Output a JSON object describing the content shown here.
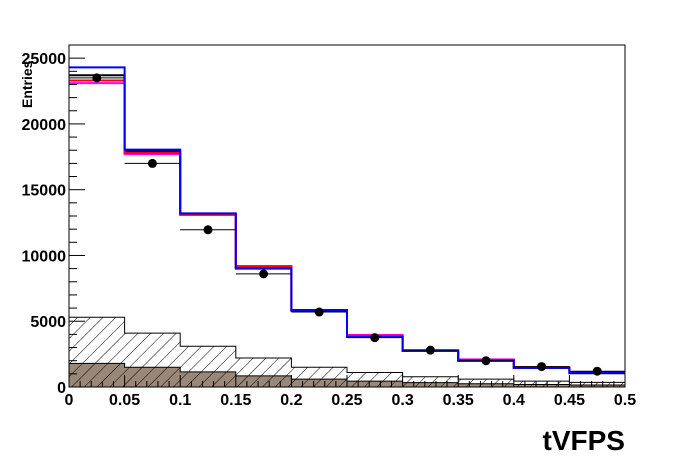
{
  "chart_data": {
    "type": "histogram",
    "xlabel": "tVFPS",
    "ylabel": "Entries",
    "xlim": [
      0,
      0.5
    ],
    "ylim": [
      0,
      26000
    ],
    "grid": false,
    "x_ticks": [
      "0",
      "0.05",
      "0.1",
      "0.15",
      "0.2",
      "0.25",
      "0.3",
      "0.35",
      "0.4",
      "0.45",
      "0.5"
    ],
    "y_ticks": [
      "0",
      "5000",
      "10000",
      "15000",
      "20000",
      "25000"
    ],
    "bin_edges": [
      0,
      0.05,
      0.1,
      0.15,
      0.2,
      0.25,
      0.3,
      0.35,
      0.4,
      0.45,
      0.5
    ],
    "series": [
      {
        "style": "filled-taupe",
        "color": "#998877",
        "values": [
          1800,
          1500,
          1150,
          850,
          600,
          450,
          330,
          250,
          190,
          150
        ]
      },
      {
        "style": "hatched",
        "color": "#000000",
        "values": [
          5300,
          4100,
          3100,
          2200,
          1500,
          1100,
          780,
          600,
          450,
          350
        ]
      },
      {
        "style": "line",
        "color": "#000000",
        "values": [
          23700,
          17900,
          13100,
          9050,
          5800,
          3850,
          2750,
          2000,
          1450,
          1050
        ]
      },
      {
        "style": "line",
        "color": "#ff00ff",
        "values": [
          23100,
          17700,
          13150,
          9200,
          5850,
          3950,
          2800,
          2100,
          1500,
          1100
        ]
      },
      {
        "style": "line",
        "color": "#ff0000",
        "values": [
          23300,
          17800,
          13150,
          9150,
          5850,
          3900,
          2750,
          2050,
          1500,
          1100
        ]
      },
      {
        "style": "line",
        "color": "#0000ff",
        "values": [
          24300,
          18050,
          13200,
          9000,
          5850,
          3800,
          2750,
          2000,
          1450,
          1100
        ]
      },
      {
        "style": "points-with-errors",
        "color": "#000000",
        "x": [
          0.025,
          0.075,
          0.125,
          0.175,
          0.225,
          0.275,
          0.325,
          0.375,
          0.425,
          0.475
        ],
        "values": [
          23500,
          17000,
          11950,
          8600,
          5700,
          3750,
          2800,
          2000,
          1550,
          1200
        ]
      }
    ]
  }
}
